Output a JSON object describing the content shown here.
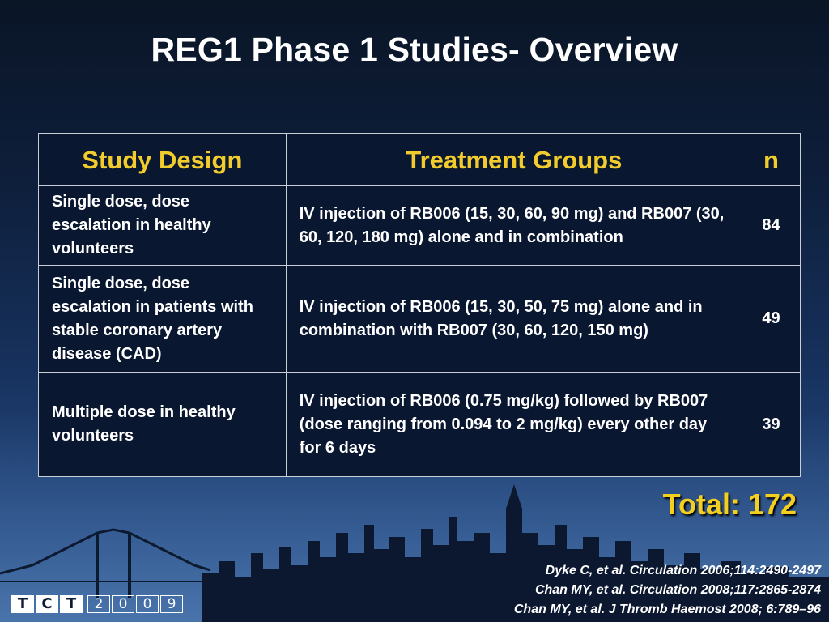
{
  "title": "REG1 Phase 1 Studies- Overview",
  "table": {
    "headers": [
      "Study Design",
      "Treatment Groups",
      "n"
    ],
    "rows": [
      {
        "design": "Single dose, dose escalation in healthy volunteers",
        "treatment": "IV injection of RB006 (15, 30, 60, 90 mg) and RB007 (30, 60, 120, 180 mg) alone and in combination",
        "n": "84"
      },
      {
        "design": "Single dose, dose escalation in patients with stable coronary artery disease (CAD)",
        "treatment": "IV injection of RB006 (15, 30, 50, 75 mg) alone and in combination with RB007 (30, 60, 120, 150 mg)",
        "n": "49"
      },
      {
        "design": "Multiple dose in healthy volunteers",
        "treatment": "IV injection of RB006 (0.75 mg/kg) followed by RB007 (dose ranging from 0.094 to 2 mg/kg) every other day for 6 days",
        "n": "39"
      }
    ]
  },
  "total": "Total: 172",
  "references": [
    "Dyke C, et al. Circulation 2006;114:2490-2497",
    "Chan MY, et al. Circulation 2008;117:2865-2874",
    "Chan MY, et al. J Thromb Haemost 2008; 6:789–96"
  ],
  "logo": {
    "letters": [
      "T",
      "C",
      "T"
    ],
    "year": [
      "2",
      "0",
      "0",
      "9"
    ]
  },
  "colors": {
    "header_text": "#f2cc2c",
    "total_text": "#f5cf1f",
    "body_text": "#ffffff"
  }
}
